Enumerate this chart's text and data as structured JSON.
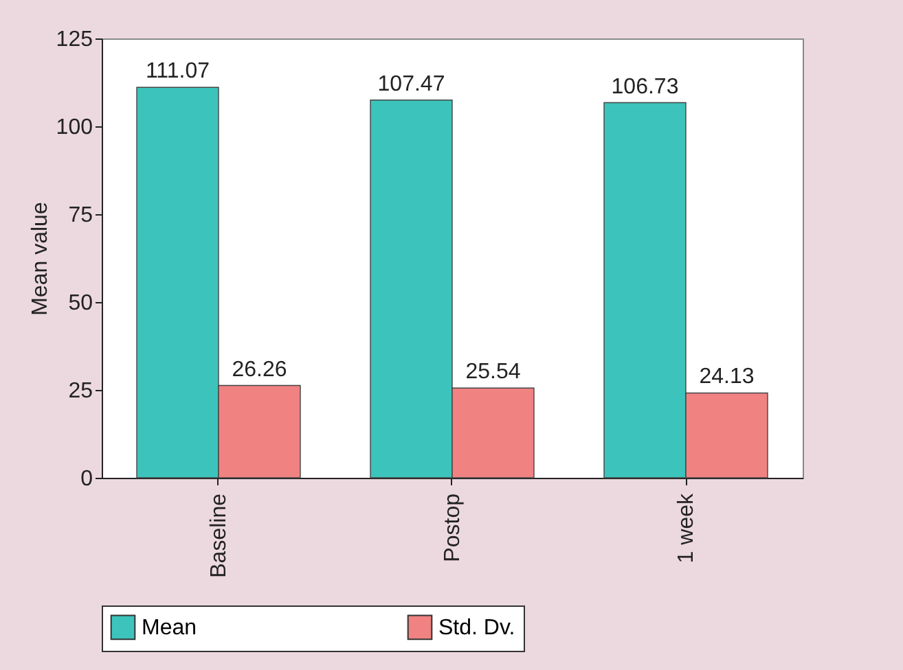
{
  "chart_data": {
    "type": "bar",
    "ylabel": "Mean value",
    "categories": [
      "Baseline",
      "Postop",
      "1 week"
    ],
    "series": [
      {
        "name": "Mean",
        "color": "#3cc4bc",
        "values": [
          111.07,
          107.47,
          106.73
        ]
      },
      {
        "name": "Std. Dv.",
        "color": "#f08282",
        "values": [
          26.26,
          25.54,
          24.13
        ]
      }
    ],
    "ylim": [
      0,
      125
    ],
    "yticks": [
      0,
      25,
      50,
      75,
      100,
      125
    ],
    "data_labels": true,
    "legend": "bottom"
  }
}
